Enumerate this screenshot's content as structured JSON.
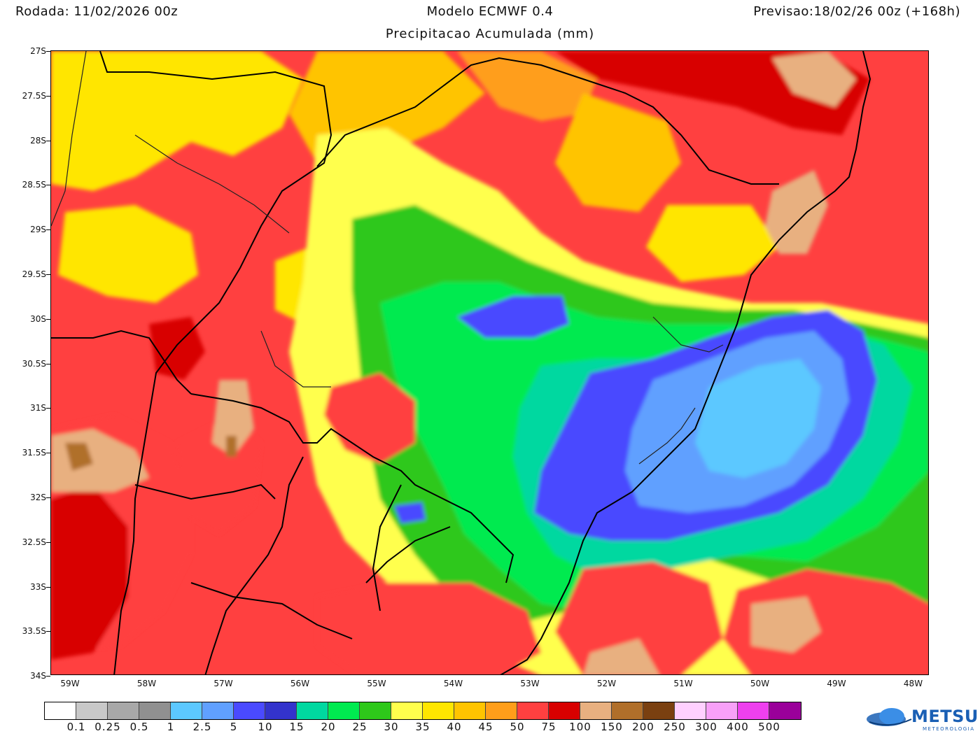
{
  "header": {
    "run": "Rodada: 11/02/2026 00z",
    "model": "Modelo ECMWF 0.4",
    "forecast": "Previsao:18/02/26 00z (+168h)",
    "subtitle": "Precipitacao Acumulada (mm)"
  },
  "axes": {
    "latitudes": [
      "27S",
      "27.5S",
      "28S",
      "28.5S",
      "29S",
      "29.5S",
      "30S",
      "30.5S",
      "31S",
      "31.5S",
      "32S",
      "32.5S",
      "33S",
      "33.5S",
      "34S"
    ],
    "longitudes": [
      "59W",
      "58W",
      "57W",
      "56W",
      "55W",
      "54W",
      "53W",
      "52W",
      "51W",
      "50W",
      "49W",
      "48W"
    ]
  },
  "legend": {
    "colors": [
      "#ffffff",
      "#c8c8c8",
      "#a8a8a8",
      "#909090",
      "#5cc8ff",
      "#60a0ff",
      "#4a4aff",
      "#3333cc",
      "#00d8a0",
      "#00ea50",
      "#2ec81a",
      "#ffff4d",
      "#ffe600",
      "#ffc400",
      "#ff9e1a",
      "#ff4040",
      "#d80000",
      "#e8b080",
      "#b06f2a",
      "#7a4010",
      "#ffd0ff",
      "#f8a0f8",
      "#ee40ee",
      "#9a009a"
    ],
    "labels": [
      "0.1",
      "0.25",
      "0.5",
      "1",
      "2.5",
      "5",
      "10",
      "15",
      "20",
      "25",
      "30",
      "35",
      "40",
      "45",
      "50",
      "75",
      "100",
      "150",
      "200",
      "250",
      "300",
      "400",
      "500"
    ]
  },
  "logo": {
    "name": "METSUL",
    "sub": "METEOROLOGIA"
  }
}
